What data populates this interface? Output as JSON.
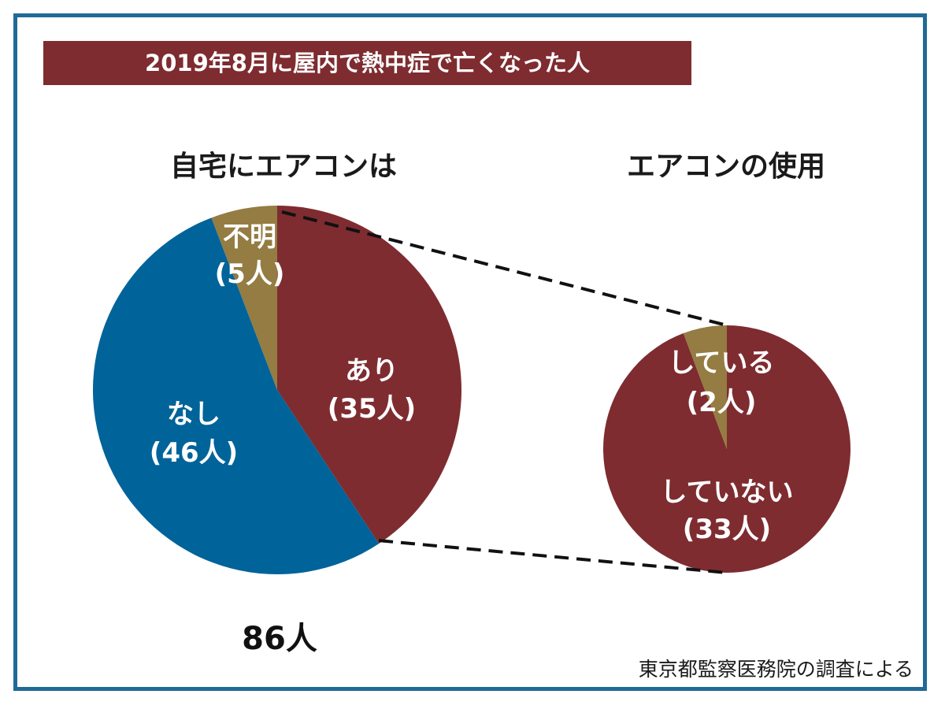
{
  "title": "2019年8月に屋内で熱中症で亡くなった人",
  "source": "東京都監察医務院の調査による",
  "colors": {
    "banner": "#7e2c30",
    "frame": "#1f6a96",
    "ari": "#7e2c30",
    "nashi": "#00639a",
    "fumei": "#947c42",
    "shiteiru": "#947c42",
    "shiteinai": "#7e2c30"
  },
  "chart_data": [
    {
      "type": "pie",
      "title": "自宅にエアコンは",
      "total_label": "86人",
      "slices": [
        {
          "label": "あり",
          "value": 35,
          "value_label": "(35人)"
        },
        {
          "label": "なし",
          "value": 46,
          "value_label": "(46人)"
        },
        {
          "label": "不明",
          "value": 5,
          "value_label": "(5人)"
        }
      ]
    },
    {
      "type": "pie",
      "title": "エアコンの使用",
      "slices": [
        {
          "label": "していない",
          "value": 33,
          "value_label": "(33人)"
        },
        {
          "label": "している",
          "value": 2,
          "value_label": "(2人)"
        }
      ]
    }
  ]
}
